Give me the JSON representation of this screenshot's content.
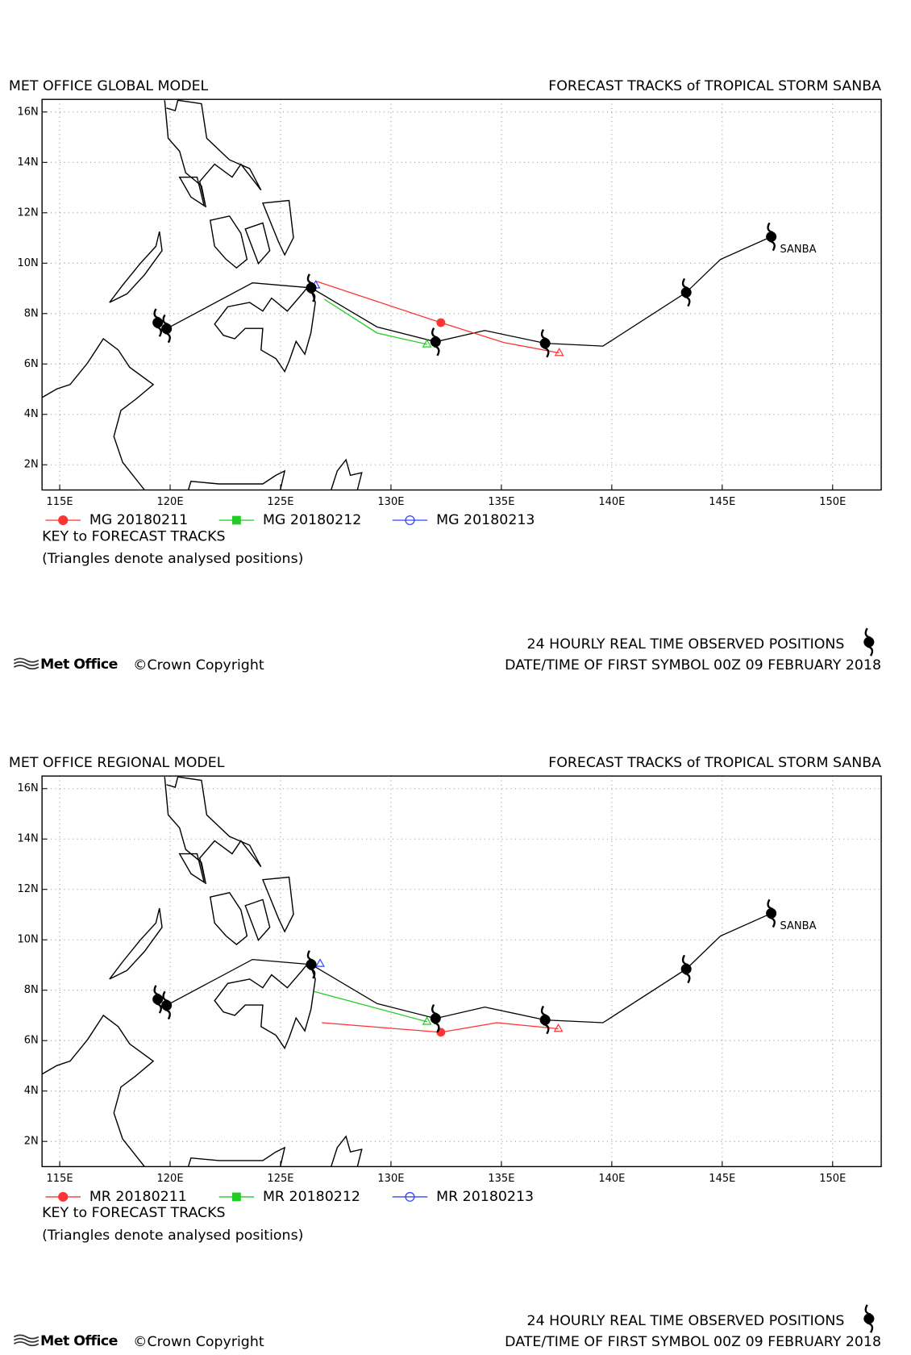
{
  "chart_data": [
    {
      "type": "track-map",
      "model_title": "MET OFFICE GLOBAL MODEL",
      "title": "FORECAST TRACKS of TROPICAL STORM SANBA",
      "xlim": [
        114.2,
        152.2
      ],
      "ylim": [
        1,
        16.5
      ],
      "xticks": [
        {
          "value": 115,
          "label": "115E"
        },
        {
          "value": 120,
          "label": "120E"
        },
        {
          "value": 125,
          "label": "125E"
        },
        {
          "value": 130,
          "label": "130E"
        },
        {
          "value": 135,
          "label": "135E"
        },
        {
          "value": 140,
          "label": "140E"
        },
        {
          "value": 145,
          "label": "145E"
        },
        {
          "value": 150,
          "label": "150E"
        }
      ],
      "yticks": [
        {
          "value": 2,
          "label": "2N"
        },
        {
          "value": 4,
          "label": "4N"
        },
        {
          "value": 6,
          "label": "6N"
        },
        {
          "value": 8,
          "label": "8N"
        },
        {
          "value": 10,
          "label": "10N"
        },
        {
          "value": 12,
          "label": "12N"
        },
        {
          "value": 14,
          "label": "14N"
        },
        {
          "value": 16,
          "label": "16N"
        }
      ],
      "grid": true,
      "observed": {
        "color": "#000000",
        "x": [
          119.84,
          123.73,
          126.39,
          129.37,
          132.02,
          134.25,
          136.98,
          139.6,
          143.37,
          144.92,
          147.22
        ],
        "y": [
          7.4,
          9.22,
          9.02,
          7.47,
          6.88,
          7.33,
          6.82,
          6.71,
          8.84,
          10.15,
          11.05
        ]
      },
      "symbols": {
        "x": [
          147.22,
          143.37,
          136.98,
          132.02,
          126.39,
          119.84,
          119.44
        ],
        "y": [
          11.05,
          8.84,
          6.82,
          6.88,
          9.02,
          7.4,
          7.64
        ]
      },
      "storm_label": "SANBA",
      "series": [
        {
          "name": "MG 20180211",
          "color": "#ff3333",
          "marker": "circle",
          "x": [
            126.59,
            132.26,
            135.12,
            137.62
          ],
          "y": [
            9.29,
            7.64,
            6.85,
            6.44
          ],
          "marker_x": [
            132.26
          ],
          "marker_y": [
            7.64
          ]
        },
        {
          "name": "MG 20180212",
          "color": "#22cc22",
          "marker": "square",
          "x": [
            126.98,
            129.37,
            131.63
          ],
          "y": [
            8.57,
            7.23,
            6.78
          ]
        },
        {
          "name": "MG 20180213",
          "color": "#3344ff",
          "marker": "open-circle",
          "x": [
            126.59
          ],
          "y": [
            9.12
          ]
        }
      ],
      "key_title": "KEY to FORECAST TRACKS",
      "key_note": "(Triangles denote analysed positions)",
      "footer_line1": "24 HOURLY REAL TIME OBSERVED POSITIONS",
      "footer_line2": "DATE/TIME OF FIRST SYMBOL 00Z 09 FEBRUARY 2018",
      "logo": "Met Office",
      "copyright": "©Crown Copyright"
    },
    {
      "type": "track-map",
      "model_title": "MET OFFICE REGIONAL MODEL",
      "title": "FORECAST TRACKS of TROPICAL STORM SANBA",
      "xlim": [
        114.2,
        152.2
      ],
      "ylim": [
        1,
        16.5
      ],
      "xticks": [
        {
          "value": 115,
          "label": "115E"
        },
        {
          "value": 120,
          "label": "120E"
        },
        {
          "value": 125,
          "label": "125E"
        },
        {
          "value": 130,
          "label": "130E"
        },
        {
          "value": 135,
          "label": "135E"
        },
        {
          "value": 140,
          "label": "140E"
        },
        {
          "value": 145,
          "label": "145E"
        },
        {
          "value": 150,
          "label": "150E"
        }
      ],
      "yticks": [
        {
          "value": 2,
          "label": "2N"
        },
        {
          "value": 4,
          "label": "4N"
        },
        {
          "value": 6,
          "label": "6N"
        },
        {
          "value": 8,
          "label": "8N"
        },
        {
          "value": 10,
          "label": "10N"
        },
        {
          "value": 12,
          "label": "12N"
        },
        {
          "value": 14,
          "label": "14N"
        },
        {
          "value": 16,
          "label": "16N"
        }
      ],
      "grid": true,
      "observed": {
        "color": "#000000",
        "x": [
          119.84,
          123.73,
          126.39,
          129.37,
          132.02,
          134.25,
          136.98,
          139.6,
          143.37,
          144.92,
          147.22
        ],
        "y": [
          7.4,
          9.22,
          9.02,
          7.47,
          6.88,
          7.33,
          6.82,
          6.71,
          8.84,
          10.15,
          11.05
        ]
      },
      "symbols": {
        "x": [
          147.22,
          143.37,
          136.98,
          132.02,
          126.39,
          119.84,
          119.44
        ],
        "y": [
          11.05,
          8.84,
          6.82,
          6.88,
          9.02,
          7.4,
          7.64
        ]
      },
      "storm_label": "SANBA",
      "series": [
        {
          "name": "MR 20180211",
          "color": "#ff3333",
          "marker": "circle",
          "x": [
            126.87,
            132.26,
            134.8,
            137.58
          ],
          "y": [
            6.71,
            6.33,
            6.71,
            6.47
          ],
          "marker_x": [
            132.26
          ],
          "marker_y": [
            6.33
          ]
        },
        {
          "name": "MR 20180212",
          "color": "#22cc22",
          "marker": "square",
          "x": [
            126.51,
            131.63
          ],
          "y": [
            7.95,
            6.75
          ]
        },
        {
          "name": "MR 20180213",
          "color": "#3344ff",
          "marker": "open-circle",
          "x": [
            126.79
          ],
          "y": [
            9.05
          ]
        }
      ],
      "key_title": "KEY to FORECAST TRACKS",
      "key_note": "(Triangles denote analysed positions)",
      "footer_line1": "24 HOURLY REAL TIME OBSERVED POSITIONS",
      "footer_line2": "DATE/TIME OF FIRST SYMBOL 00Z 09 FEBRUARY 2018",
      "logo": "Met Office",
      "copyright": "©Crown Copyright"
    }
  ]
}
